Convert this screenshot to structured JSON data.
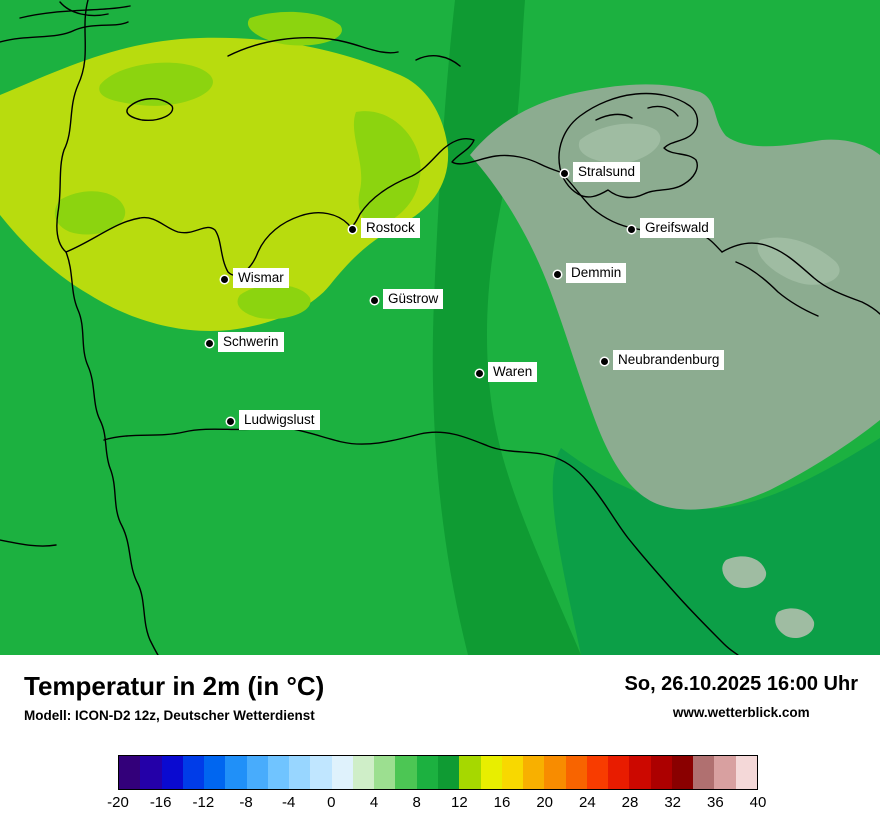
{
  "map": {
    "colors": {
      "green": "#1cb140",
      "dark_green": "#0f9b33",
      "teal_green": "#0c9f47",
      "yellow_green": "#b8dc0e",
      "light_green": "#8cd40f",
      "sage": "#8cac90",
      "sage_light": "#9fbca2"
    },
    "cities": [
      {
        "name": "Stralsund"
      },
      {
        "name": "Greifswald"
      },
      {
        "name": "Rostock"
      },
      {
        "name": "Wismar"
      },
      {
        "name": "Demmin"
      },
      {
        "name": "Güstrow"
      },
      {
        "name": "Schwerin"
      },
      {
        "name": "Neubrandenburg"
      },
      {
        "name": "Waren"
      },
      {
        "name": "Ludwigslust"
      }
    ]
  },
  "footer": {
    "title": "Temperatur in 2m (in °C)",
    "model": "Modell: ICON-D2 12z, Deutscher Wetterdienst",
    "datetime": "So, 26.10.2025 16:00 Uhr",
    "website": "www.wetterblick.com"
  },
  "legend": {
    "unit": "°C",
    "min": -20,
    "max": 40,
    "step": 2,
    "ticks": [
      "-20",
      "-16",
      "-12",
      "-8",
      "-4",
      "0",
      "4",
      "8",
      "12",
      "16",
      "20",
      "24",
      "28",
      "32",
      "36",
      "40"
    ],
    "colors": [
      "#33007a",
      "#2400a8",
      "#0a0ad0",
      "#003ce8",
      "#0066f0",
      "#2090f8",
      "#48acfc",
      "#70c4ff",
      "#98d6ff",
      "#c0e6ff",
      "#dff2fc",
      "#cfeec8",
      "#9cdf90",
      "#4cc654",
      "#1cb140",
      "#0f9b33",
      "#a6d800",
      "#e8ee00",
      "#f8d800",
      "#f8b000",
      "#f88c00",
      "#f86400",
      "#f83c00",
      "#e81c00",
      "#cc0800",
      "#ac0000",
      "#8a0000",
      "#b07070",
      "#d8a0a0",
      "#f4d8d8"
    ]
  }
}
